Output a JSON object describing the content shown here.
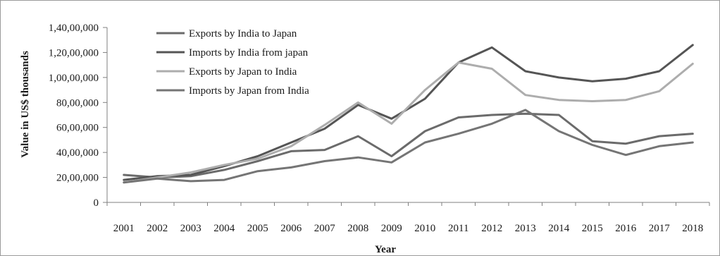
{
  "chart_data": {
    "type": "line",
    "title": "",
    "xlabel": "Year",
    "ylabel": "Value in US$ thousands",
    "ylim": [
      0,
      14000000
    ],
    "yticks": [
      0,
      2000000,
      4000000,
      6000000,
      8000000,
      10000000,
      12000000,
      14000000
    ],
    "ytick_labels": [
      "0",
      "20,00,000",
      "40,00,000",
      "60,00,000",
      "80,00,000",
      "1,00,00,000",
      "1,20,00,000",
      "1,40,00,000"
    ],
    "categories": [
      "2001",
      "2002",
      "2003",
      "2004",
      "2005",
      "2006",
      "2007",
      "2008",
      "2009",
      "2010",
      "2011",
      "2012",
      "2013",
      "2014",
      "2015",
      "2016",
      "2017",
      "2018"
    ],
    "grid": false,
    "legend_position": "top-left",
    "series": [
      {
        "name": "Exports by India to Japan",
        "color": "#6b6b6b",
        "values": [
          2200000,
          2000000,
          2100000,
          2600000,
          3300000,
          4100000,
          4200000,
          5300000,
          3700000,
          5700000,
          6800000,
          7000000,
          7100000,
          7000000,
          4900000,
          4700000,
          5300000,
          5500000
        ]
      },
      {
        "name": "Imports by India from japan",
        "color": "#555555",
        "values": [
          1800000,
          2100000,
          2200000,
          2900000,
          3700000,
          4800000,
          5900000,
          7800000,
          6700000,
          8300000,
          11200000,
          12400000,
          10500000,
          10000000,
          9700000,
          9900000,
          10500000,
          12600000
        ]
      },
      {
        "name": "Exports by Japan to India",
        "color": "#adadad",
        "values": [
          1600000,
          2000000,
          2400000,
          3000000,
          3500000,
          4500000,
          6200000,
          8000000,
          6300000,
          9000000,
          11200000,
          10700000,
          8600000,
          8200000,
          8100000,
          8200000,
          8900000,
          11100000
        ]
      },
      {
        "name": "Imports by Japan from India",
        "color": "#757575",
        "values": [
          1600000,
          1900000,
          1700000,
          1800000,
          2500000,
          2800000,
          3300000,
          3600000,
          3200000,
          4800000,
          5500000,
          6300000,
          7400000,
          5700000,
          4600000,
          3800000,
          4500000,
          4800000
        ]
      }
    ]
  }
}
